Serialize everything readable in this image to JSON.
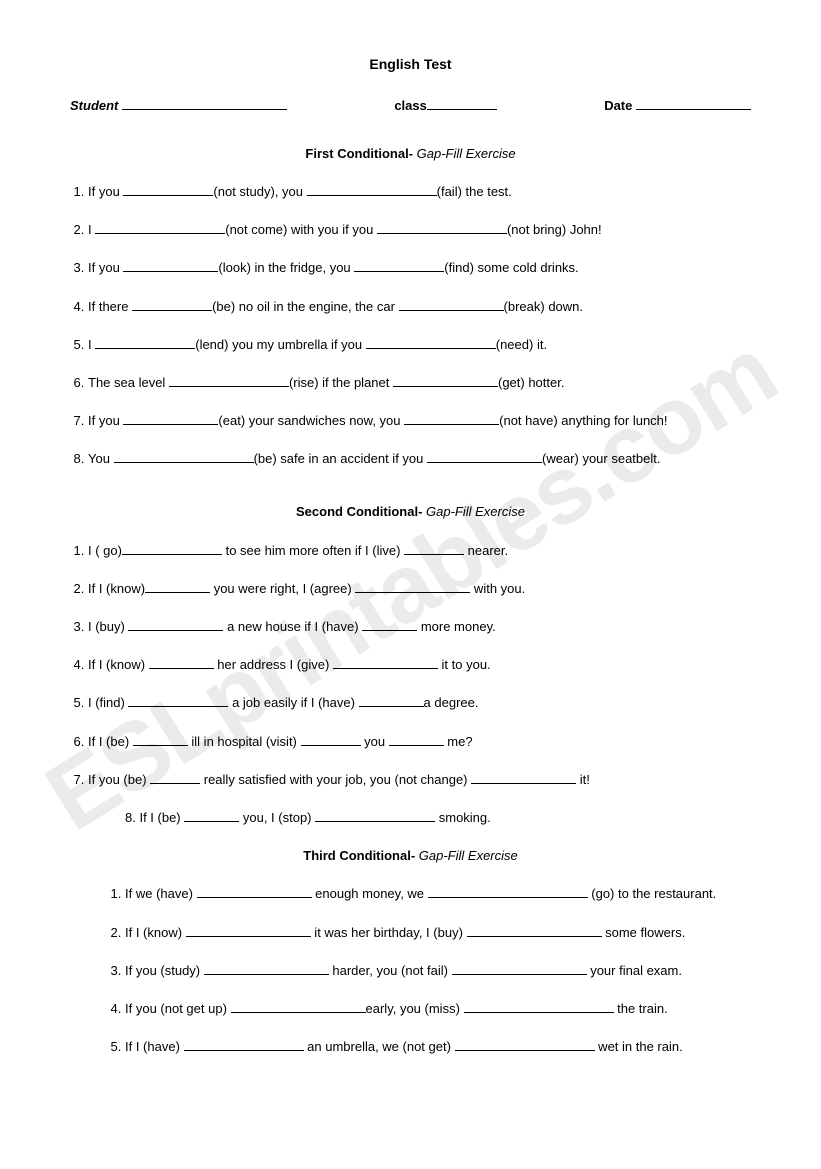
{
  "title": "English Test",
  "header": {
    "student_label": "Student",
    "class_label": "class",
    "date_label": "Date"
  },
  "watermark": "ESLprintables.com",
  "sections": [
    {
      "title_bold": "First Conditional-",
      "title_italic": " Gap-Fill Exercise",
      "items": [
        [
          {
            "t": "If you "
          },
          {
            "b": 90
          },
          {
            "t": "(not study), you "
          },
          {
            "b": 130
          },
          {
            "t": "(fail) the test."
          }
        ],
        [
          {
            "t": "I "
          },
          {
            "b": 130
          },
          {
            "t": "(not come) with you if you "
          },
          {
            "b": 130
          },
          {
            "t": "(not bring) John!"
          }
        ],
        [
          {
            "t": "If you "
          },
          {
            "b": 95
          },
          {
            "t": "(look) in the fridge, you "
          },
          {
            "b": 90
          },
          {
            "t": "(find) some cold drinks."
          }
        ],
        [
          {
            "t": "If there "
          },
          {
            "b": 80
          },
          {
            "t": "(be) no oil in the engine, the car "
          },
          {
            "b": 105
          },
          {
            "t": "(break) down."
          }
        ],
        [
          {
            "t": "I "
          },
          {
            "b": 100
          },
          {
            "t": "(lend) you my umbrella if you "
          },
          {
            "b": 130
          },
          {
            "t": "(need) it."
          }
        ],
        [
          {
            "t": "The sea level "
          },
          {
            "b": 120
          },
          {
            "t": "(rise) if the planet "
          },
          {
            "b": 105
          },
          {
            "t": "(get) hotter."
          }
        ],
        [
          {
            "t": "If you "
          },
          {
            "b": 95
          },
          {
            "t": "(eat) your sandwiches now, you "
          },
          {
            "b": 95
          },
          {
            "t": "(not have) anything for lunch!"
          }
        ],
        [
          {
            "t": "You "
          },
          {
            "b": 140
          },
          {
            "t": "(be) safe in an accident if you "
          },
          {
            "b": 115
          },
          {
            "t": "(wear) your seatbelt."
          }
        ]
      ]
    },
    {
      "title_bold": "Second Conditional-",
      "title_italic": " Gap-Fill Exercise",
      "items": [
        [
          {
            "t": "I ( go)"
          },
          {
            "b": 100
          },
          {
            "t": " to see him more often if I (live) "
          },
          {
            "b": 60
          },
          {
            "t": " nearer."
          }
        ],
        [
          {
            "t": "If I (know)"
          },
          {
            "b": 65
          },
          {
            "t": " you were right, I (agree) "
          },
          {
            "b": 115
          },
          {
            "t": " with you."
          }
        ],
        [
          {
            "t": "I (buy) "
          },
          {
            "b": 95
          },
          {
            "t": " a new house if I (have) "
          },
          {
            "b": 55
          },
          {
            "t": " more money."
          }
        ],
        [
          {
            "t": "If I (know) "
          },
          {
            "b": 65
          },
          {
            "t": " her address I (give) "
          },
          {
            "b": 105
          },
          {
            "t": " it to you."
          }
        ],
        [
          {
            "t": "I (find) "
          },
          {
            "b": 100
          },
          {
            "t": " a job easily if I (have) "
          },
          {
            "b": 65
          },
          {
            "t": "a degree."
          }
        ],
        [
          {
            "t": "If I (be) "
          },
          {
            "b": 55
          },
          {
            "t": " ill in hospital (visit) "
          },
          {
            "b": 60
          },
          {
            "t": " you "
          },
          {
            "b": 55
          },
          {
            "t": " me?"
          }
        ],
        [
          {
            "t": "If you (be) "
          },
          {
            "b": 50
          },
          {
            "t": " really satisfied with your job, you (not change) "
          },
          {
            "b": 105
          },
          {
            "t": " it!"
          }
        ]
      ],
      "item8": [
        {
          "t": "8.   If I (be) "
        },
        {
          "b": 55
        },
        {
          "t": " you, I (stop) "
        },
        {
          "b": 120
        },
        {
          "t": " smoking."
        }
      ]
    },
    {
      "title_bold": "Third Conditional-",
      "title_italic": " Gap-Fill Exercise",
      "indented": true,
      "items": [
        [
          {
            "t": "If we (have) "
          },
          {
            "b": 115
          },
          {
            "t": " enough money, we "
          },
          {
            "b": 160
          },
          {
            "t": " (go) to the restaurant."
          }
        ],
        [
          {
            "t": "If I (know) "
          },
          {
            "b": 125
          },
          {
            "t": " it was her birthday, I (buy) "
          },
          {
            "b": 135
          },
          {
            "t": " some flowers."
          }
        ],
        [
          {
            "t": "If you (study) "
          },
          {
            "b": 125
          },
          {
            "t": " harder, you (not fail) "
          },
          {
            "b": 135
          },
          {
            "t": " your final exam."
          }
        ],
        [
          {
            "t": "If you (not get up) "
          },
          {
            "b": 135
          },
          {
            "t": "early, you (miss) "
          },
          {
            "b": 150
          },
          {
            "t": " the train."
          }
        ],
        [
          {
            "t": "If I (have) "
          },
          {
            "b": 120
          },
          {
            "t": " an umbrella, we (not get) "
          },
          {
            "b": 140
          },
          {
            "t": " wet in the rain."
          }
        ]
      ]
    }
  ]
}
